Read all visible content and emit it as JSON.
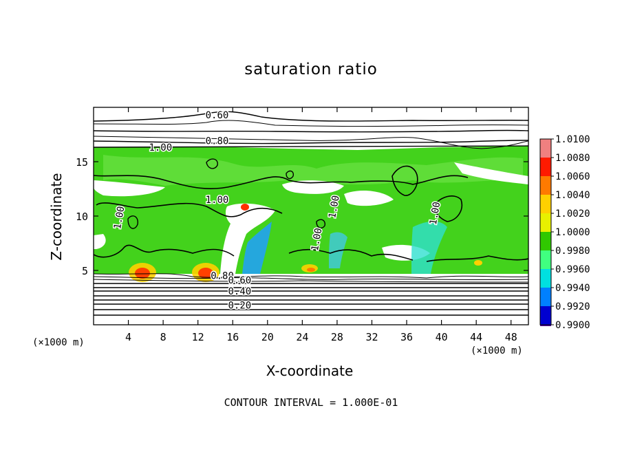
{
  "chart_data": {
    "type": "heatmap",
    "title": "saturation ratio",
    "xlabel": "X-coordinate",
    "ylabel": "Z-coordinate",
    "x_unit_label": "(×1000 m)",
    "x_unit_label_right": "(×1000 m)",
    "footer": "CONTOUR INTERVAL = 1.000E-01",
    "xlim": [
      0,
      50
    ],
    "ylim": [
      0,
      20
    ],
    "xticks": [
      4,
      8,
      12,
      16,
      20,
      24,
      28,
      32,
      36,
      40,
      44,
      48
    ],
    "yticks": [
      5,
      10,
      15
    ],
    "colorbar": {
      "ticks": [
        "1.0100",
        "1.0080",
        "1.0060",
        "1.0040",
        "1.0020",
        "1.0000",
        "0.9980",
        "0.9960",
        "0.9940",
        "0.9920",
        "0.9900"
      ],
      "colors": [
        "#f08080",
        "#ff1a00",
        "#ff7a00",
        "#ffd000",
        "#e8f000",
        "#30c800",
        "#40ff80",
        "#00e0e0",
        "#0080ff",
        "#0000d0",
        "#500090"
      ]
    },
    "contours": [
      {
        "label": "0.60",
        "x": 14.2,
        "z": 19.0
      },
      {
        "label": "0.80",
        "x": 14.2,
        "z": 16.6
      },
      {
        "label": "1.00",
        "x": 7.7,
        "z": 16.0
      },
      {
        "label": "1.00",
        "x": 14.2,
        "z": 11.2
      },
      {
        "label": "1.00",
        "x": 3.3,
        "z": 9.8
      },
      {
        "label": "1.00",
        "x": 28.0,
        "z": 10.8
      },
      {
        "label": "1.00",
        "x": 26.0,
        "z": 7.8
      },
      {
        "label": "1.00",
        "x": 39.6,
        "z": 10.2
      },
      {
        "label": "0.80",
        "x": 14.8,
        "z": 4.2
      },
      {
        "label": "0.60",
        "x": 16.8,
        "z": 3.8
      },
      {
        "label": "0.40",
        "x": 16.8,
        "z": 2.8
      },
      {
        "label": "0.20",
        "x": 16.8,
        "z": 1.5
      }
    ]
  }
}
